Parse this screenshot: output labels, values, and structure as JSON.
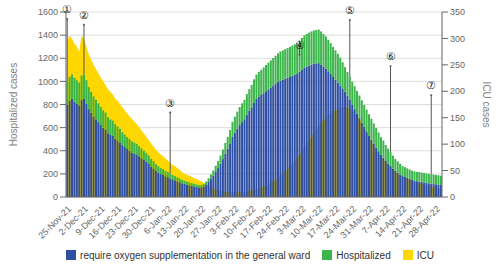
{
  "chart_data": {
    "type": "bar",
    "stacked": true,
    "grid": true,
    "legend": "bottom",
    "ylabel": "Hospitalized cases",
    "y2label": "ICU cases",
    "ylim": [
      0,
      1600
    ],
    "yticks": [
      0,
      200,
      400,
      600,
      800,
      1000,
      1200,
      1400,
      1600
    ],
    "y2lim": [
      0,
      350
    ],
    "y2ticks": [
      0,
      50,
      100,
      150,
      200,
      250,
      300,
      350
    ],
    "categories": [
      "25-Nov-21",
      null,
      null,
      null,
      null,
      null,
      null,
      "2-Dec-21",
      null,
      null,
      null,
      null,
      null,
      null,
      "9-Dec-21",
      null,
      null,
      null,
      null,
      null,
      null,
      "16-Dec-21",
      null,
      null,
      null,
      null,
      null,
      null,
      "23-Dec-21",
      null,
      null,
      null,
      null,
      null,
      null,
      "30-Dec-21",
      null,
      null,
      null,
      null,
      null,
      null,
      "6-Jan-22",
      null,
      null,
      null,
      null,
      null,
      null,
      "13-Jan-22",
      null,
      null,
      null,
      null,
      null,
      null,
      "20-Jan-22",
      null,
      null,
      null,
      null,
      null,
      null,
      "27-Jan-22",
      null,
      null,
      null,
      null,
      null,
      null,
      "3-Feb-22",
      null,
      null,
      null,
      null,
      null,
      null,
      "10-Feb-22",
      null,
      null,
      null,
      null,
      null,
      null,
      "17-Feb-22",
      null,
      null,
      null,
      null,
      null,
      null,
      "24-Feb-22",
      null,
      null,
      null,
      null,
      null,
      null,
      "3-Mar-22",
      null,
      null,
      null,
      null,
      null,
      null,
      "10-Mar-22",
      null,
      null,
      null,
      null,
      null,
      null,
      "17-Mar-22",
      null,
      null,
      null,
      null,
      null,
      null,
      "24-Mar-22",
      null,
      null,
      null,
      null,
      null,
      null,
      "31-Mar-22",
      null,
      null,
      null,
      null,
      null,
      null,
      "7-Apr-22",
      null,
      null,
      null,
      null,
      null,
      null,
      "14-Apr-22",
      null,
      null,
      null,
      null,
      null,
      null,
      "21-Apr-22",
      null,
      null,
      null,
      null,
      null,
      null,
      "28-Apr-22",
      null,
      null
    ],
    "series": [
      {
        "name": "require oxygen supplementation in the general ward",
        "color": "#2E4FA3",
        "values": [
          800,
          832,
          848,
          824,
          808,
          792,
          840,
          848,
          808,
          760,
          728,
          696,
          672,
          648,
          624,
          600,
          584,
          552,
          536,
          528,
          504,
          488,
          472,
          448,
          432,
          416,
          400,
          384,
          376,
          368,
          352,
          336,
          320,
          304,
          288,
          264,
          248,
          228,
          212,
          200,
          192,
          180,
          172,
          160,
          152,
          144,
          136,
          128,
          118,
          112,
          106,
          101,
          96,
          91,
          86,
          82,
          84,
          92,
          108,
          130,
          156,
          184,
          216,
          250,
          286,
          328,
          374,
          416,
          464,
          520,
          556,
          590,
          622,
          648,
          672,
          712,
          744,
          776,
          814,
          848,
          866,
          882,
          898,
          914,
          930,
          946,
          962,
          978,
          994,
          1007,
          1015,
          1023,
          1031,
          1038,
          1048,
          1056,
          1064,
          1082,
          1100,
          1118,
          1128,
          1138,
          1146,
          1152,
          1156,
          1158,
          1146,
          1128,
          1112,
          1088,
          1064,
          1038,
          1014,
          990,
          966,
          940,
          910,
          876,
          840,
          800,
          760,
          720,
          682,
          643,
          606,
          568,
          532,
          496,
          462,
          428,
          396,
          364,
          340,
          312,
          289,
          267,
          246,
          226,
          209,
          194,
          181,
          173,
          165,
          156,
          147,
          141,
          137,
          133,
          130,
          126,
          122,
          118,
          115,
          112,
          110,
          108,
          104
        ]
      },
      {
        "name": "Hospitalized",
        "color": "#3CB54A",
        "values": [
          200,
          208,
          212,
          206,
          202,
          198,
          210,
          212,
          202,
          190,
          182,
          174,
          168,
          162,
          156,
          150,
          146,
          138,
          134,
          132,
          126,
          122,
          118,
          112,
          108,
          104,
          100,
          96,
          94,
          92,
          88,
          84,
          80,
          76,
          72,
          66,
          62,
          57,
          53,
          50,
          48,
          45,
          43,
          40,
          38,
          36,
          34,
          32,
          30,
          28,
          27,
          25,
          24,
          23,
          22,
          20,
          21,
          23,
          27,
          32,
          39,
          46,
          54,
          62,
          72,
          82,
          94,
          104,
          116,
          130,
          139,
          148,
          156,
          162,
          168,
          178,
          188,
          194,
          204,
          212,
          216,
          218,
          222,
          228,
          232,
          236,
          240,
          244,
          248,
          251,
          253,
          255,
          257,
          260,
          262,
          264,
          266,
          270,
          275,
          280,
          282,
          284,
          286,
          288,
          289,
          290,
          286,
          282,
          278,
          272,
          266,
          260,
          254,
          248,
          239,
          225,
          214,
          206,
          200,
          198,
          198,
          198,
          196,
          193,
          190,
          188,
          184,
          180,
          174,
          168,
          162,
          154,
          148,
          138,
          131,
          123,
          112,
          102,
          99,
          94,
          87,
          85,
          83,
          82,
          81,
          81,
          81,
          83,
          82,
          82,
          82,
          82,
          81,
          82,
          80,
          80,
          80
        ]
      },
      {
        "name": "ICU",
        "color": "#FFD700",
        "type": "area",
        "axis": "y2",
        "values": [
          295,
          305,
          300,
          290,
          285,
          275,
          305,
          300,
          285,
          270,
          260,
          250,
          242,
          234,
          226,
          219,
          212,
          204,
          199,
          194,
          187,
          182,
          176,
          170,
          164,
          158,
          153,
          148,
          143,
          138,
          132,
          126,
          120,
          114,
          108,
          102,
          96,
          90,
          85,
          81,
          77,
          73,
          69,
          65,
          61,
          58,
          55,
          51,
          47,
          44,
          42,
          40,
          38,
          36,
          34,
          32,
          30,
          27,
          24,
          21,
          18,
          16,
          14,
          13,
          12,
          11,
          10,
          9,
          9,
          9,
          9,
          9,
          9,
          9,
          10,
          11,
          12,
          13,
          14,
          15,
          16,
          18,
          20,
          22,
          24,
          27,
          30,
          33,
          36,
          40,
          44,
          48,
          53,
          58,
          63,
          68,
          74,
          80,
          87,
          94,
          101,
          108,
          115,
          122,
          128,
          134,
          140,
          145,
          150,
          155,
          158,
          161,
          164,
          166,
          168,
          170,
          170,
          169,
          167,
          164,
          160,
          154,
          148,
          140,
          132,
          124,
          115,
          106,
          97,
          89,
          82,
          76,
          71,
          66,
          62,
          58,
          53,
          49,
          45,
          42,
          39,
          37,
          35,
          33,
          31,
          29,
          28,
          26,
          25,
          23,
          22,
          21,
          20,
          19,
          18,
          17,
          16
        ]
      }
    ],
    "annotations": [
      {
        "text": "①",
        "index": 0,
        "y": 1540
      },
      {
        "text": "②",
        "index": 7,
        "y": 1490
      },
      {
        "text": "③",
        "index": 43,
        "y": 730
      },
      {
        "text": "④",
        "index": 97,
        "y": 1230
      },
      {
        "text": "⑤",
        "index": 118,
        "y": 1530
      },
      {
        "text": "⑥",
        "index": 135,
        "y": 1130
      },
      {
        "text": "⑦",
        "index": 152,
        "y": 880
      }
    ]
  }
}
